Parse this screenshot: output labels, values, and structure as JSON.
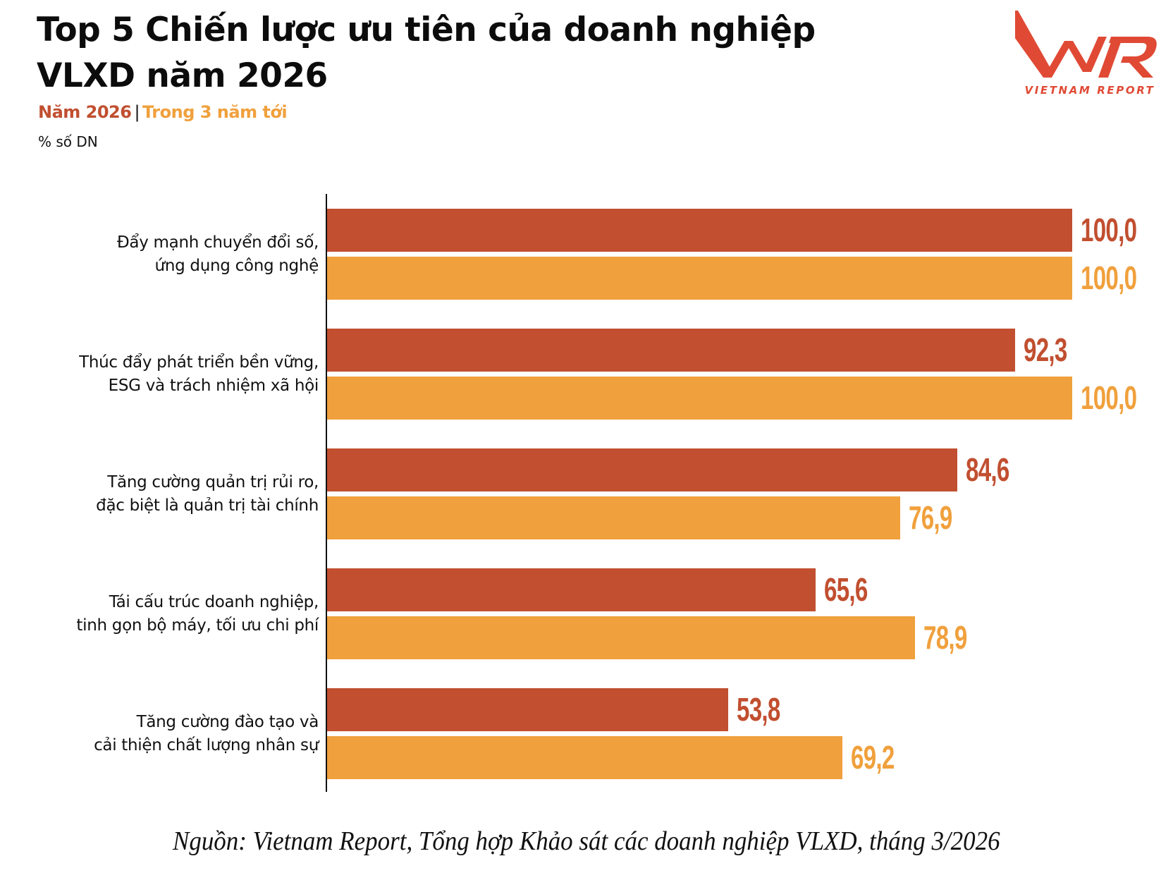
{
  "header": {
    "title": "Top 5 Chiến lược ưu tiên của doanh nghiệp VLXD năm 2026",
    "legend": {
      "series1": "Năm 2026",
      "separator": "|",
      "series2": "Trong 3 năm tới"
    },
    "unit": "% số DN"
  },
  "logo": {
    "mark": "VNR",
    "text": "VIETNAM REPORT",
    "color": "#E04A35"
  },
  "colors": {
    "series1": "#C14F30",
    "series2": "#F0A03C"
  },
  "footer": {
    "source": "Nguồn: Vietnam Report, Tổng hợp Khảo sát các doanh nghiệp VLXD, tháng 3/2026"
  },
  "chart_data": {
    "type": "bar",
    "orientation": "horizontal",
    "title": "Top 5 Chiến lược ưu tiên của doanh nghiệp VLXD năm 2026",
    "subtitle": "% số DN",
    "categories": [
      "Đẩy mạnh chuyển đổi số, ứng dụng công nghệ",
      "Thúc đẩy phát triển bền vững, ESG và trách nhiệm xã hội",
      "Tăng cường quản trị rủi ro, đặc biệt là quản trị tài chính",
      "Tái cấu trúc doanh nghiệp, tinh gọn bộ máy, tối ưu chi phí",
      "Tăng cường đào tạo và cải thiện chất lượng nhân sự"
    ],
    "category_lines": [
      [
        "Đẩy mạnh chuyển đổi số,",
        "ứng dụng công nghệ"
      ],
      [
        "Thúc đẩy phát triển bền vững,",
        "ESG và trách nhiệm xã hội"
      ],
      [
        "Tăng cường quản trị rủi ro,",
        "đặc biệt là quản trị tài chính"
      ],
      [
        "Tái cấu trúc doanh nghiệp,",
        "tinh gọn bộ máy, tối ưu chi phí"
      ],
      [
        "Tăng cường đào tạo và",
        "cải thiện chất lượng nhân sự"
      ]
    ],
    "series": [
      {
        "name": "Năm 2026",
        "color": "#C14F30",
        "values": [
          100.0,
          92.3,
          84.6,
          65.6,
          53.8
        ],
        "labels": [
          "100,0",
          "92,3",
          "84,6",
          "65,6",
          "53,8"
        ]
      },
      {
        "name": "Trong 3 năm tới",
        "color": "#F0A03C",
        "values": [
          100.0,
          100.0,
          76.9,
          78.9,
          69.2
        ],
        "labels": [
          "100,0",
          "100,0",
          "76,9",
          "78,9",
          "69,2"
        ]
      }
    ],
    "xlabel": "",
    "ylabel": "",
    "xlim": [
      0,
      100
    ],
    "grid": false,
    "legend_position": "top-left (inline subtitle)",
    "source": "Nguồn: Vietnam Report, Tổng hợp Khảo sát các doanh nghiệp VLXD, tháng 3/2026"
  }
}
